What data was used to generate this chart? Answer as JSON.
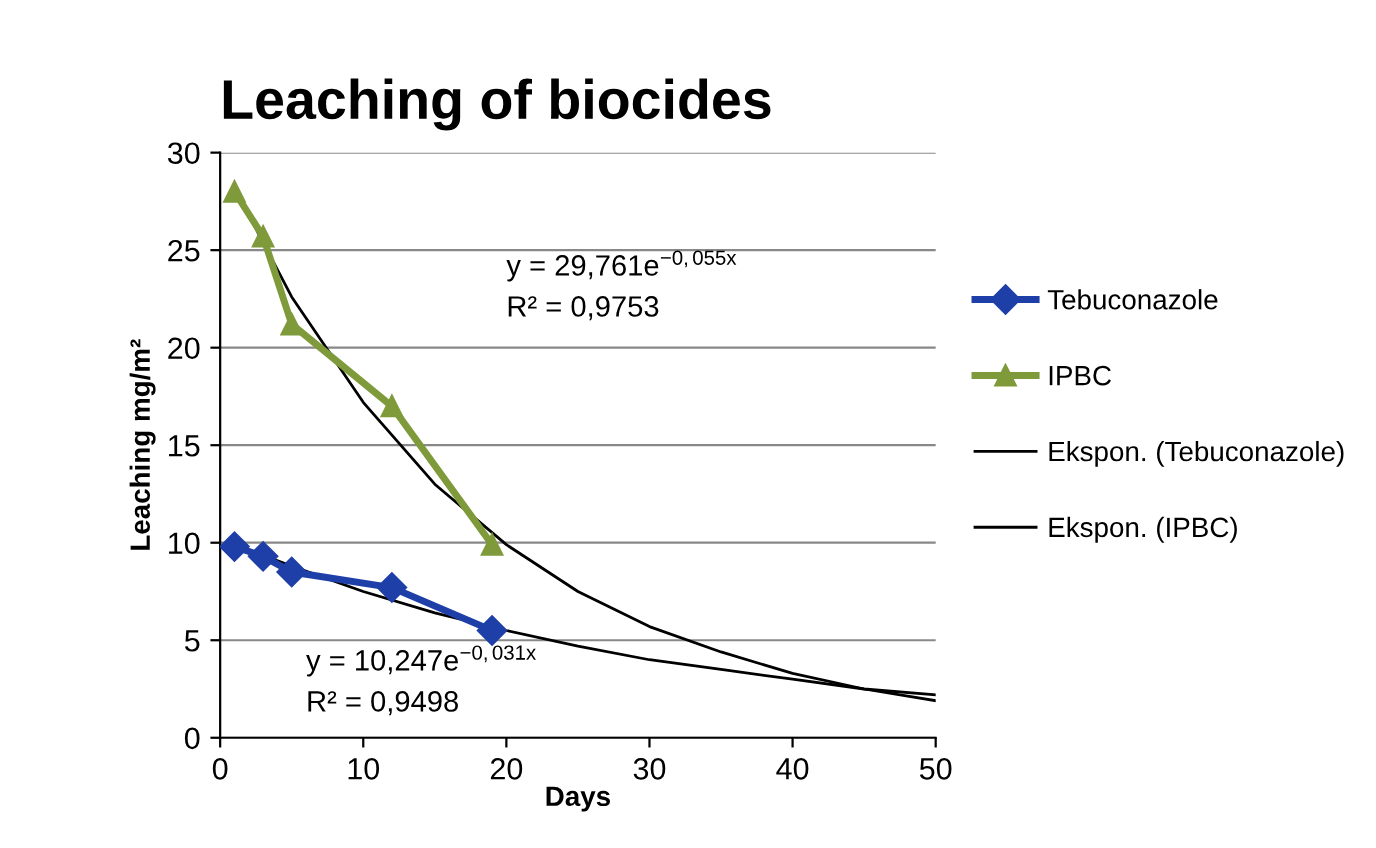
{
  "chart_data": {
    "type": "line",
    "title": "Leaching of biocides",
    "xlabel": "Days",
    "ylabel": "Leaching mg/m²",
    "xlim": [
      0,
      50
    ],
    "xticks": [
      0,
      10,
      20,
      30,
      40,
      50
    ],
    "ylim": [
      0,
      30
    ],
    "yticks": [
      0,
      5,
      10,
      15,
      20,
      25,
      30
    ],
    "grid": "y",
    "legend": "right",
    "series": [
      {
        "name": "Tebuconazole",
        "color": "#1f3fa8",
        "marker": "diamond",
        "x": [
          1,
          3,
          5,
          12,
          19
        ],
        "values": [
          9.8,
          9.3,
          8.5,
          7.7,
          5.5
        ]
      },
      {
        "name": "IPBC",
        "color": "#7f9a3a",
        "marker": "triangle",
        "x": [
          1,
          3,
          5,
          12,
          19
        ],
        "values": [
          28,
          25.7,
          21.2,
          17,
          9.9
        ]
      },
      {
        "name": "Ekspon. (Tebuconazole)",
        "color": "#000000",
        "marker": "none",
        "x": [
          1,
          5,
          10,
          15,
          20,
          25,
          30,
          35,
          40,
          45,
          50
        ],
        "values": [
          9.9,
          8.8,
          7.5,
          6.4,
          5.5,
          4.7,
          4.0,
          3.5,
          3.0,
          2.5,
          2.2
        ]
      },
      {
        "name": "Ekspon. (IPBC)",
        "color": "#000000",
        "marker": "none",
        "x": [
          1,
          5,
          10,
          15,
          20,
          25,
          30,
          35,
          40,
          45,
          50
        ],
        "values": [
          28.2,
          22.6,
          17.2,
          13.0,
          9.9,
          7.5,
          5.7,
          4.4,
          3.3,
          2.5,
          1.9
        ]
      }
    ],
    "annotations": [
      "y = 29,761e$^{−0,055x}$",
      "R² = 0,9753",
      "y = 10,247e$^{−0,031x}$",
      "R² = 0,9498"
    ]
  }
}
